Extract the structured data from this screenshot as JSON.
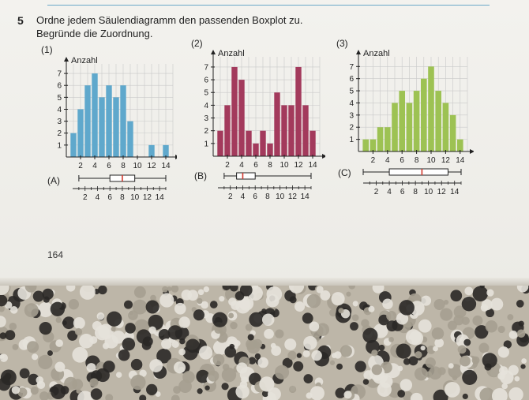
{
  "task": {
    "number": "5",
    "line1": "Ordne jedem Säulendiagramm den passenden Boxplot zu.",
    "line2": "Begründe die Zuordnung."
  },
  "page_number": "164",
  "colors": {
    "blue": "#5fa8cc",
    "red": "#a33a5c",
    "green": "#9dc253",
    "median": "#d2392e"
  },
  "chart_data": [
    {
      "type": "bar",
      "label": "(1)",
      "ylabel": "Anzahl",
      "xlabel": "",
      "x": [
        1,
        2,
        3,
        4,
        5,
        6,
        7,
        8,
        9,
        10,
        11,
        12,
        13,
        14
      ],
      "values": [
        2,
        4,
        6,
        7,
        5,
        6,
        5,
        6,
        3,
        0,
        0,
        1,
        0,
        1
      ],
      "xticks": [
        2,
        4,
        6,
        8,
        10,
        12,
        14
      ],
      "yticks": [
        1,
        2,
        3,
        4,
        5,
        6,
        7
      ],
      "xlim": [
        0,
        15
      ],
      "ylim": [
        0,
        7.8
      ],
      "grid": true
    },
    {
      "type": "bar",
      "label": "(2)",
      "ylabel": "Anzahl",
      "xlabel": "",
      "x": [
        1,
        2,
        3,
        4,
        5,
        6,
        7,
        8,
        9,
        10,
        11,
        12,
        13,
        14
      ],
      "values": [
        2,
        4,
        7,
        6,
        2,
        1,
        2,
        1,
        5,
        4,
        4,
        7,
        4,
        2
      ],
      "xticks": [
        2,
        4,
        6,
        8,
        10,
        12,
        14
      ],
      "yticks": [
        1,
        2,
        3,
        4,
        5,
        6,
        7
      ],
      "xlim": [
        0,
        15
      ],
      "ylim": [
        0,
        7.8
      ],
      "grid": true
    },
    {
      "type": "bar",
      "label": "(3)",
      "ylabel": "Anzahl",
      "xlabel": "",
      "x": [
        1,
        2,
        3,
        4,
        5,
        6,
        7,
        8,
        9,
        10,
        11,
        12,
        13,
        14
      ],
      "values": [
        1,
        1,
        2,
        2,
        4,
        5,
        4,
        5,
        6,
        7,
        5,
        4,
        3,
        1
      ],
      "xticks": [
        2,
        4,
        6,
        8,
        10,
        12,
        14
      ],
      "yticks": [
        1,
        2,
        3,
        4,
        5,
        6,
        7
      ],
      "xlim": [
        0,
        15
      ],
      "ylim": [
        0,
        7.8
      ],
      "grid": true
    }
  ],
  "boxplots": [
    {
      "label": "(A)",
      "min": 1,
      "q1": 6,
      "median": 8,
      "q3": 10,
      "max": 15,
      "xticks": [
        2,
        4,
        6,
        8,
        10,
        12,
        14
      ]
    },
    {
      "label": "(B)",
      "min": 1,
      "q1": 3,
      "median": 4,
      "q3": 6,
      "max": 15,
      "xticks": [
        2,
        4,
        6,
        8,
        10,
        12,
        14
      ]
    },
    {
      "label": "(C)",
      "min": 0,
      "q1": 4,
      "median": 9,
      "q3": 13,
      "max": 15,
      "xticks": [
        2,
        4,
        6,
        8,
        10,
        12,
        14
      ]
    }
  ]
}
